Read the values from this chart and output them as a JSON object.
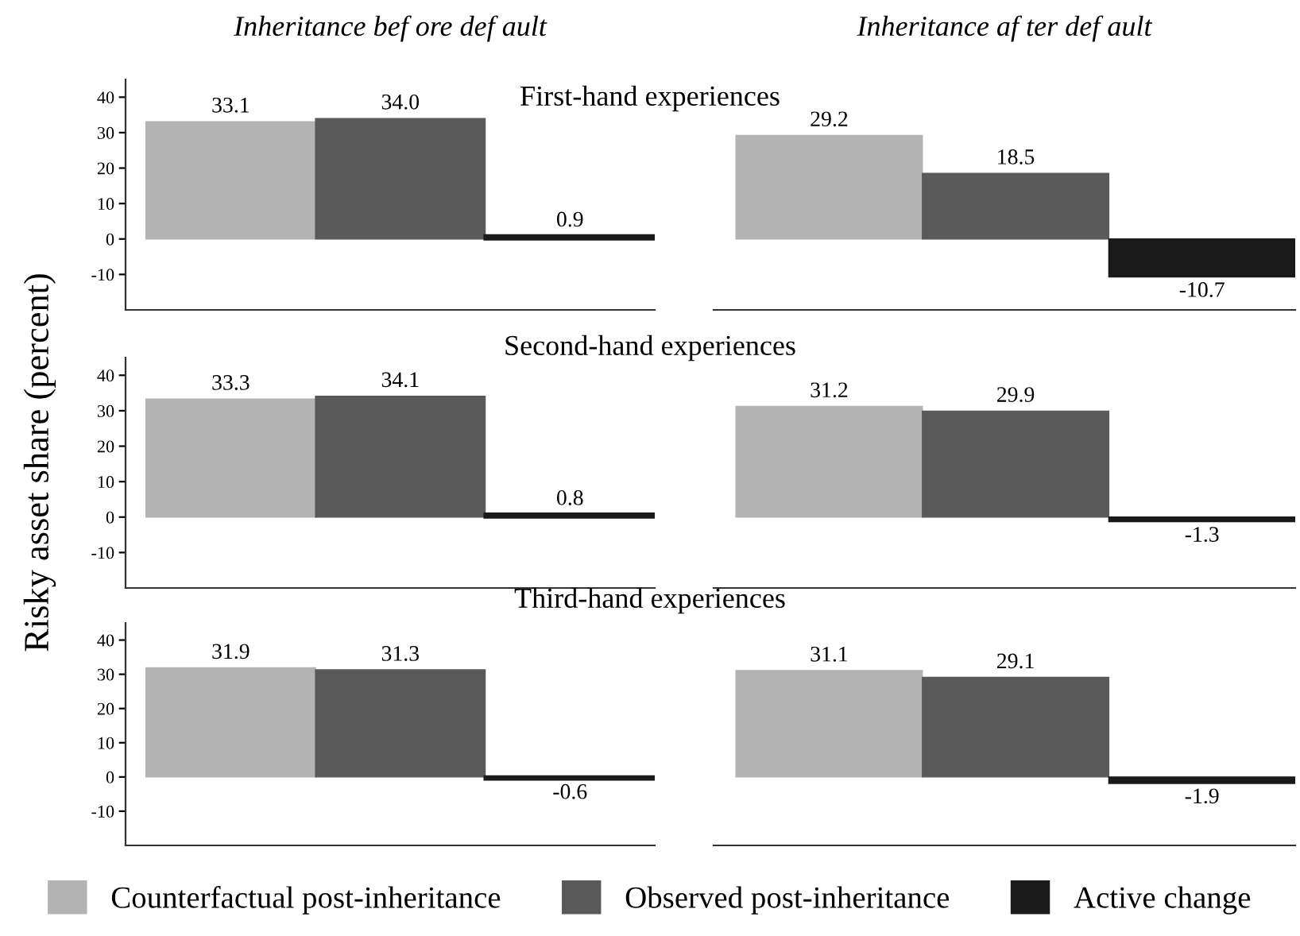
{
  "chart_data": [
    {
      "type": "bar",
      "title": "First-hand experiences",
      "subtitle": "Inheritance bef ore def ault",
      "categories": [
        null
      ],
      "ylim": [
        -20,
        45
      ],
      "yticks": [
        -10,
        0,
        10,
        20,
        30,
        40
      ],
      "tick_labels": "y",
      "data_labels": true,
      "legend": "bottom",
      "series": [
        {
          "name": "Counterfactual post-inheritance",
          "color": "#b3b3b3",
          "values": [
            33.1
          ]
        },
        {
          "name": "Observed post-inheritance",
          "color": "#595959",
          "values": [
            34.0
          ],
          "value_labels": [
            "34.0"
          ]
        },
        {
          "name": "Active change",
          "color": "#1a1a1a",
          "values": [
            0.9
          ]
        }
      ]
    },
    {
      "type": "bar",
      "subtitle": "Inheritance af ter def ault",
      "categories": [
        null
      ],
      "tick_labels": false,
      "data_labels": true,
      "series": [
        {
          "color": "#b3b3b3",
          "values": [
            29.2
          ]
        },
        {
          "color": "#595959",
          "values": [
            18.5
          ]
        },
        {
          "color": "#1a1a1a",
          "values": [
            -10.7
          ]
        }
      ]
    },
    {
      "type": "bar",
      "title": "Second-hand experiences",
      "ylabel": "Risky asset share (percent)",
      "categories": [
        null
      ],
      "ylim": [
        -20,
        45
      ],
      "yticks": [
        -10,
        0,
        10,
        20,
        30,
        40
      ],
      "tick_labels": "y",
      "data_labels": true,
      "series": [
        {
          "color": "#b3b3b3",
          "values": [
            33.3
          ]
        },
        {
          "color": "#595959",
          "values": [
            34.1
          ]
        },
        {
          "color": "#1a1a1a",
          "values": [
            0.8
          ]
        }
      ]
    },
    {
      "type": "bar",
      "categories": [
        null
      ],
      "tick_labels": false,
      "data_labels": true,
      "series": [
        {
          "color": "#b3b3b3",
          "values": [
            31.2
          ]
        },
        {
          "color": "#595959",
          "values": [
            29.9
          ]
        },
        {
          "color": "#1a1a1a",
          "values": [
            -1.3
          ]
        }
      ]
    },
    {
      "type": "bar",
      "title": "Third-hand experiences",
      "categories": [
        null
      ],
      "ylim": [
        -20,
        45
      ],
      "yticks": [
        -10,
        0,
        10,
        20,
        30,
        40
      ],
      "tick_labels": "y",
      "data_labels": true,
      "series": [
        {
          "color": "#b3b3b3",
          "values": [
            31.9
          ]
        },
        {
          "color": "#595959",
          "values": [
            31.3
          ]
        },
        {
          "color": "#1a1a1a",
          "values": [
            -0.6
          ]
        }
      ]
    },
    {
      "type": "bar",
      "categories": [
        null
      ],
      "tick_labels": false,
      "data_labels": true,
      "series": [
        {
          "color": "#b3b3b3",
          "values": [
            31.1
          ]
        },
        {
          "color": "#595959",
          "values": [
            29.1
          ]
        },
        {
          "color": "#1a1a1a",
          "values": [
            -1.9
          ]
        }
      ]
    }
  ]
}
